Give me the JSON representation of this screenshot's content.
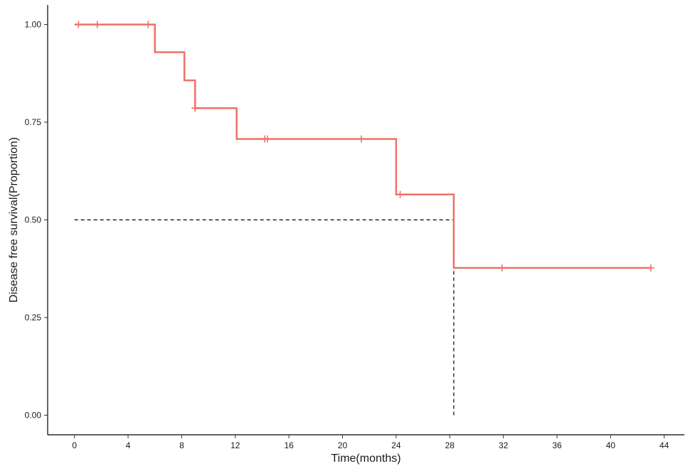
{
  "chart_data": {
    "type": "line",
    "subtype": "kaplan-meier-step",
    "xlabel": "Time(months)",
    "ylabel": "Disease free survival(Proportion)",
    "xlim": [
      -2,
      45.5
    ],
    "ylim": [
      -0.05,
      1.05
    ],
    "xticks": [
      0,
      4,
      8,
      12,
      16,
      20,
      24,
      28,
      32,
      36,
      40,
      44
    ],
    "yticks": [
      0.0,
      0.25,
      0.5,
      0.75,
      1.0
    ],
    "ytick_labels": [
      "0.00",
      "0.25",
      "0.50",
      "0.75",
      "1.00"
    ],
    "grid": false,
    "legend": "none",
    "series": [
      {
        "color": "#f07165",
        "steps": [
          {
            "x": 0,
            "y": 1.0
          },
          {
            "x": 6.0,
            "y": 0.929
          },
          {
            "x": 8.2,
            "y": 0.857
          },
          {
            "x": 9.0,
            "y": 0.786
          },
          {
            "x": 12.1,
            "y": 0.707
          },
          {
            "x": 24.0,
            "y": 0.565
          },
          {
            "x": 28.3,
            "y": 0.377
          },
          {
            "x": 43.0,
            "y": 0.377
          }
        ],
        "censored": [
          {
            "x": 0.3,
            "y": 1.0
          },
          {
            "x": 1.7,
            "y": 1.0
          },
          {
            "x": 5.5,
            "y": 1.0
          },
          {
            "x": 9.0,
            "y": 0.786
          },
          {
            "x": 14.2,
            "y": 0.707
          },
          {
            "x": 14.4,
            "y": 0.707
          },
          {
            "x": 21.4,
            "y": 0.707
          },
          {
            "x": 24.3,
            "y": 0.565
          },
          {
            "x": 31.9,
            "y": 0.377
          },
          {
            "x": 43.0,
            "y": 0.377
          }
        ]
      }
    ],
    "median_survival": {
      "x": 28.3,
      "y": 0.5,
      "line_color": "#000000",
      "line_style": "dashed"
    }
  }
}
